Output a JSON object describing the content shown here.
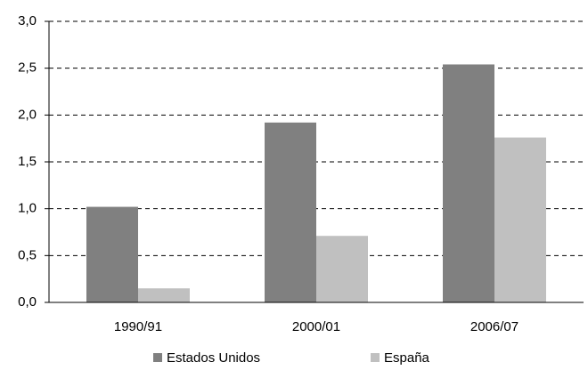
{
  "chart_data": {
    "type": "bar",
    "categories": [
      "1990/91",
      "2000/01",
      "2006/07"
    ],
    "series": [
      {
        "name": "Estados Unidos",
        "color": "#808080",
        "values": [
          1.02,
          1.92,
          2.54
        ]
      },
      {
        "name": "España",
        "color": "#c0c0c0",
        "values": [
          0.15,
          0.71,
          1.76
        ]
      }
    ],
    "ylim": [
      0,
      3
    ],
    "yticks": [
      {
        "value": 0,
        "label": "0,0"
      },
      {
        "value": 0.5,
        "label": "0,5"
      },
      {
        "value": 1,
        "label": "1,0"
      },
      {
        "value": 1.5,
        "label": "1,5"
      },
      {
        "value": 2,
        "label": "2,0"
      },
      {
        "value": 2.5,
        "label": "2,5"
      },
      {
        "value": 3,
        "label": "3,0"
      }
    ],
    "grid": true,
    "legend": "bottom"
  }
}
